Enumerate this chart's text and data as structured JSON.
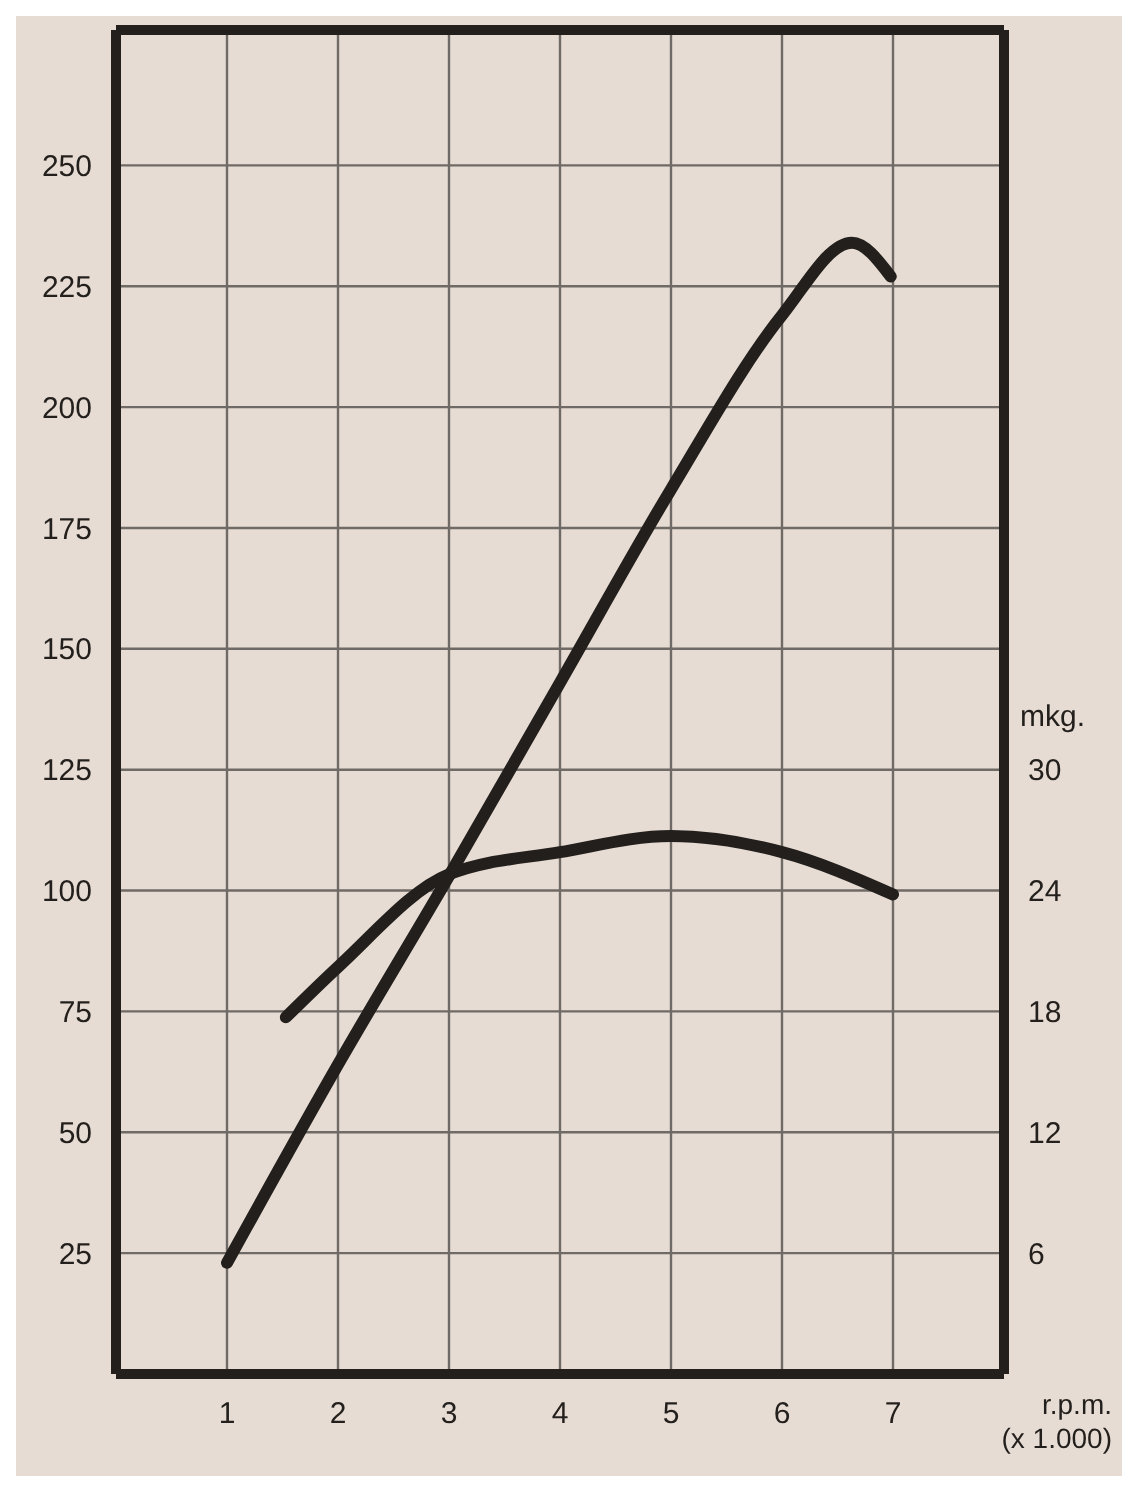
{
  "chart_data": {
    "type": "line",
    "xlabel": "r.p.m. (x 1.000)",
    "y2label": "mkg.",
    "xlim": [
      0,
      8
    ],
    "xticks": [
      1,
      2,
      3,
      4,
      5,
      6,
      7
    ],
    "ylim": [
      0,
      278
    ],
    "yticks": [
      25,
      50,
      75,
      100,
      125,
      150,
      175,
      200,
      225,
      250
    ],
    "y2lim": [
      0,
      66.7
    ],
    "y2ticks": [
      6,
      12,
      18,
      24,
      30
    ],
    "grid": true,
    "legend": false,
    "marker": "none",
    "line_style": "solid",
    "series": [
      {
        "color": "#231f1c",
        "x": [
          1,
          2,
          3,
          4,
          5,
          6,
          6.63,
          6.98
        ],
        "values": [
          23,
          64,
          103,
          143,
          183,
          219,
          234,
          227
        ]
      },
      {
        "color": "#231f1c",
        "axis": "y2",
        "x": [
          1.53,
          2,
          3,
          4,
          5,
          6,
          7
        ],
        "values": [
          17.7,
          20.2,
          24.8,
          25.9,
          26.7,
          25.9,
          23.8
        ]
      }
    ]
  }
}
